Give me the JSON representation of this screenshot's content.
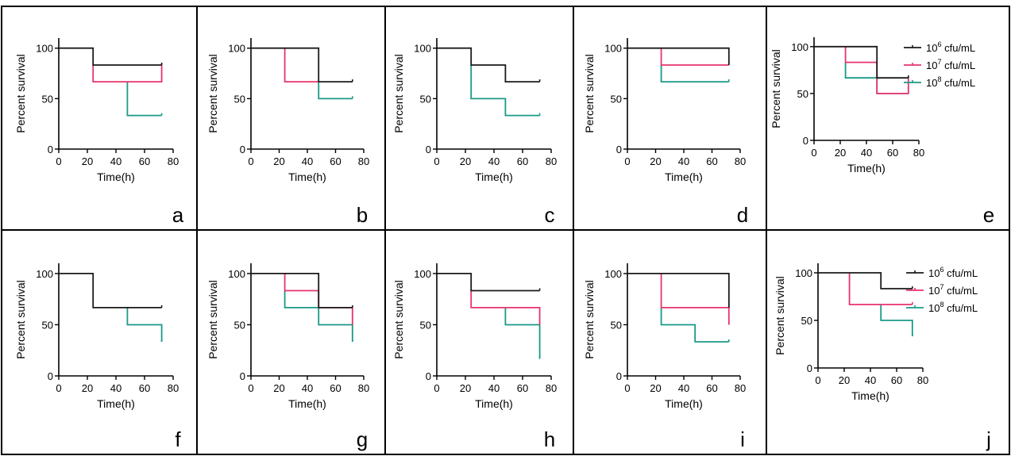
{
  "colors": {
    "series": [
      "#1a1a1a",
      "#e8336d",
      "#1a9987"
    ],
    "axis": "#000000",
    "border": "#000000",
    "background": "#ffffff"
  },
  "legend_template": {
    "entries": [
      {
        "base": "10",
        "exp": "6",
        "unit": " cfu/mL"
      },
      {
        "base": "10",
        "exp": "7",
        "unit": " cfu/mL"
      },
      {
        "base": "10",
        "exp": "8",
        "unit": " cfu/mL"
      }
    ]
  },
  "chart_data": [
    {
      "panel": "a",
      "type": "line",
      "step": true,
      "xlabel": "Time(h)",
      "ylabel": "Percent survival",
      "xlim": [
        0,
        80
      ],
      "ylim": [
        0,
        110
      ],
      "xticks": [
        0,
        20,
        40,
        60,
        80
      ],
      "yticks": [
        0,
        50,
        100
      ],
      "legend": false,
      "series": [
        {
          "points": [
            [
              0,
              100
            ],
            [
              24,
              100
            ],
            [
              24,
              83.3
            ],
            [
              72,
              83.3
            ]
          ]
        },
        {
          "points": [
            [
              24,
              83.3
            ],
            [
              24,
              66.7
            ],
            [
              72,
              66.7
            ],
            [
              72,
              83.3
            ]
          ]
        },
        {
          "points": [
            [
              48,
              66.7
            ],
            [
              48,
              33.3
            ],
            [
              72,
              33.3
            ]
          ]
        }
      ]
    },
    {
      "panel": "b",
      "type": "line",
      "step": true,
      "xlabel": "Time(h)",
      "ylabel": "Percent survival",
      "xlim": [
        0,
        80
      ],
      "ylim": [
        0,
        110
      ],
      "xticks": [
        0,
        20,
        40,
        60,
        80
      ],
      "yticks": [
        0,
        50,
        100
      ],
      "legend": false,
      "series": [
        {
          "points": [
            [
              0,
              100
            ],
            [
              48,
              100
            ],
            [
              48,
              66.7
            ],
            [
              72,
              66.7
            ]
          ]
        },
        {
          "points": [
            [
              24,
              100
            ],
            [
              24,
              66.7
            ],
            [
              48,
              66.7
            ]
          ]
        },
        {
          "points": [
            [
              48,
              66.7
            ],
            [
              48,
              50
            ],
            [
              72,
              50
            ]
          ]
        }
      ]
    },
    {
      "panel": "c",
      "type": "line",
      "step": true,
      "xlabel": "Time(h)",
      "ylabel": "Percent survival",
      "xlim": [
        0,
        80
      ],
      "ylim": [
        0,
        110
      ],
      "xticks": [
        0,
        20,
        40,
        60,
        80
      ],
      "yticks": [
        0,
        50,
        100
      ],
      "legend": false,
      "series": [
        {
          "points": [
            [
              0,
              100
            ],
            [
              24,
              100
            ],
            [
              24,
              83.3
            ],
            [
              48,
              83.3
            ],
            [
              48,
              66.7
            ],
            [
              72,
              66.7
            ]
          ]
        },
        {
          "points": []
        },
        {
          "points": [
            [
              24,
              83.3
            ],
            [
              24,
              50
            ],
            [
              48,
              50
            ],
            [
              48,
              33.3
            ],
            [
              72,
              33.3
            ]
          ]
        }
      ]
    },
    {
      "panel": "d",
      "type": "line",
      "step": true,
      "xlabel": "Time(h)",
      "ylabel": "Percent survival",
      "xlim": [
        0,
        80
      ],
      "ylim": [
        0,
        110
      ],
      "xticks": [
        0,
        20,
        40,
        60,
        80
      ],
      "yticks": [
        0,
        50,
        100
      ],
      "legend": false,
      "series": [
        {
          "points": [
            [
              0,
              100
            ],
            [
              72,
              100
            ],
            [
              72,
              83.3
            ]
          ]
        },
        {
          "points": [
            [
              24,
              100
            ],
            [
              24,
              83.3
            ],
            [
              72,
              83.3
            ]
          ]
        },
        {
          "points": [
            [
              24,
              83.3
            ],
            [
              24,
              66.7
            ],
            [
              72,
              66.7
            ]
          ]
        }
      ]
    },
    {
      "panel": "e",
      "type": "line",
      "step": true,
      "xlabel": "Time(h)",
      "ylabel": "Percent survival",
      "xlim": [
        0,
        80
      ],
      "ylim": [
        0,
        110
      ],
      "xticks": [
        0,
        20,
        40,
        60,
        80
      ],
      "yticks": [
        0,
        50,
        100
      ],
      "legend": true,
      "legend_position": "top-right",
      "series": [
        {
          "points": [
            [
              0,
              100
            ],
            [
              48,
              100
            ],
            [
              48,
              66.7
            ],
            [
              72,
              66.7
            ]
          ]
        },
        {
          "points": [
            [
              24,
              100
            ],
            [
              24,
              83.3
            ],
            [
              48,
              83.3
            ],
            [
              48,
              50
            ],
            [
              72,
              50
            ],
            [
              72,
              66.7
            ]
          ]
        },
        {
          "points": [
            [
              24,
              83.3
            ],
            [
              24,
              66.7
            ],
            [
              48,
              66.7
            ],
            [
              48,
              50
            ],
            [
              72,
              50
            ]
          ]
        }
      ]
    },
    {
      "panel": "f",
      "type": "line",
      "step": true,
      "xlabel": "Time(h)",
      "ylabel": "Percent survival",
      "xlim": [
        0,
        80
      ],
      "ylim": [
        0,
        110
      ],
      "xticks": [
        0,
        20,
        40,
        60,
        80
      ],
      "yticks": [
        0,
        50,
        100
      ],
      "legend": false,
      "series": [
        {
          "points": [
            [
              0,
              100
            ],
            [
              24,
              100
            ],
            [
              24,
              66.7
            ],
            [
              72,
              66.7
            ]
          ]
        },
        {
          "points": []
        },
        {
          "points": [
            [
              48,
              66.7
            ],
            [
              48,
              50
            ],
            [
              72,
              50
            ],
            [
              72,
              33.3
            ]
          ]
        }
      ]
    },
    {
      "panel": "g",
      "type": "line",
      "step": true,
      "xlabel": "Time(h)",
      "ylabel": "Percent survival",
      "xlim": [
        0,
        80
      ],
      "ylim": [
        0,
        110
      ],
      "xticks": [
        0,
        20,
        40,
        60,
        80
      ],
      "yticks": [
        0,
        50,
        100
      ],
      "legend": false,
      "series": [
        {
          "points": [
            [
              0,
              100
            ],
            [
              48,
              100
            ],
            [
              48,
              66.7
            ],
            [
              72,
              66.7
            ]
          ]
        },
        {
          "points": [
            [
              24,
              100
            ],
            [
              24,
              83.3
            ],
            [
              48,
              83.3
            ],
            [
              48,
              66.7
            ],
            [
              72,
              66.7
            ],
            [
              72,
              50
            ]
          ]
        },
        {
          "points": [
            [
              24,
              83.3
            ],
            [
              24,
              66.7
            ],
            [
              48,
              66.7
            ],
            [
              48,
              50
            ],
            [
              72,
              50
            ],
            [
              72,
              33.3
            ]
          ]
        }
      ]
    },
    {
      "panel": "h",
      "type": "line",
      "step": true,
      "xlabel": "Time(h)",
      "ylabel": "Percent survival",
      "xlim": [
        0,
        80
      ],
      "ylim": [
        0,
        110
      ],
      "xticks": [
        0,
        20,
        40,
        60,
        80
      ],
      "yticks": [
        0,
        50,
        100
      ],
      "legend": false,
      "series": [
        {
          "points": [
            [
              0,
              100
            ],
            [
              24,
              100
            ],
            [
              24,
              83.3
            ],
            [
              72,
              83.3
            ]
          ]
        },
        {
          "points": [
            [
              24,
              83.3
            ],
            [
              24,
              66.7
            ],
            [
              72,
              66.7
            ],
            [
              72,
              50
            ]
          ]
        },
        {
          "points": [
            [
              48,
              66.7
            ],
            [
              48,
              50
            ],
            [
              72,
              50
            ],
            [
              72,
              16.7
            ]
          ]
        }
      ]
    },
    {
      "panel": "i",
      "type": "line",
      "step": true,
      "xlabel": "Time(h)",
      "ylabel": "Percent survival",
      "xlim": [
        0,
        80
      ],
      "ylim": [
        0,
        110
      ],
      "xticks": [
        0,
        20,
        40,
        60,
        80
      ],
      "yticks": [
        0,
        50,
        100
      ],
      "legend": false,
      "series": [
        {
          "points": [
            [
              0,
              100
            ],
            [
              72,
              100
            ],
            [
              72,
              66.7
            ]
          ]
        },
        {
          "points": [
            [
              24,
              100
            ],
            [
              24,
              66.7
            ],
            [
              72,
              66.7
            ],
            [
              72,
              50
            ]
          ]
        },
        {
          "points": [
            [
              24,
              66.7
            ],
            [
              24,
              50
            ],
            [
              48,
              50
            ],
            [
              48,
              33.3
            ],
            [
              72,
              33.3
            ]
          ]
        }
      ]
    },
    {
      "panel": "j",
      "type": "line",
      "step": true,
      "xlabel": "Time(h)",
      "ylabel": "Percent survival",
      "xlim": [
        0,
        80
      ],
      "ylim": [
        0,
        110
      ],
      "xticks": [
        0,
        20,
        40,
        60,
        80
      ],
      "yticks": [
        0,
        50,
        100
      ],
      "legend": true,
      "legend_position": "top-right",
      "series": [
        {
          "points": [
            [
              0,
              100
            ],
            [
              48,
              100
            ],
            [
              48,
              83.3
            ],
            [
              72,
              83.3
            ]
          ]
        },
        {
          "points": [
            [
              24,
              100
            ],
            [
              24,
              66.7
            ],
            [
              72,
              66.7
            ]
          ]
        },
        {
          "points": [
            [
              48,
              66.7
            ],
            [
              48,
              50
            ],
            [
              72,
              50
            ],
            [
              72,
              33.3
            ]
          ]
        }
      ]
    }
  ]
}
